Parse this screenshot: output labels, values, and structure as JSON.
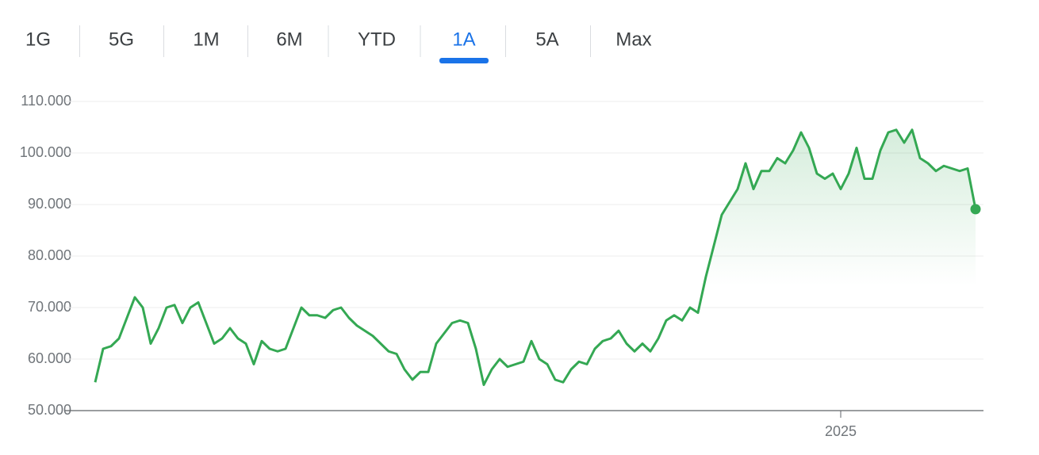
{
  "tabs": [
    "1G",
    "5G",
    "1M",
    "6M",
    "YTD",
    "1A",
    "5A",
    "Max"
  ],
  "active_tab": 5,
  "chart_data": {
    "type": "line",
    "color": "#34a853",
    "grid": true,
    "categories": [
      null,
      null,
      null,
      null,
      null,
      null,
      null,
      null,
      null,
      null,
      null,
      null,
      null,
      null,
      null,
      null,
      null,
      null,
      null,
      null,
      null,
      null,
      null,
      null,
      null,
      null,
      null,
      null,
      null,
      null,
      null,
      null,
      null,
      null,
      null,
      null,
      null,
      null,
      null,
      null,
      null,
      null,
      null,
      null,
      null,
      null,
      null,
      null,
      null,
      null,
      null,
      null,
      null,
      null,
      null,
      null,
      null,
      null,
      null,
      null,
      null,
      null,
      null,
      null,
      null,
      null,
      null,
      null,
      null,
      null,
      null,
      null,
      null,
      null,
      null,
      null,
      null,
      null,
      null,
      null,
      null,
      null,
      null,
      null,
      null,
      null,
      null,
      null,
      null,
      null,
      null,
      null,
      null,
      null,
      "2025",
      null,
      null,
      null,
      null,
      null,
      null,
      null,
      null,
      null,
      null,
      null,
      null,
      null,
      null,
      null,
      null,
      null
    ],
    "values": [
      55500,
      62000,
      62500,
      64000,
      68000,
      72000,
      70000,
      63000,
      66000,
      70000,
      70500,
      67000,
      70000,
      71000,
      67000,
      63000,
      64000,
      66000,
      64000,
      63000,
      59000,
      63500,
      62000,
      61500,
      62000,
      66000,
      70000,
      68500,
      68500,
      68000,
      69500,
      70000,
      68000,
      66500,
      65500,
      64500,
      63000,
      61500,
      61000,
      58000,
      56000,
      57500,
      57500,
      63000,
      65000,
      67000,
      67500,
      67000,
      62000,
      55000,
      58000,
      60000,
      58500,
      59000,
      59500,
      63500,
      60000,
      59000,
      56000,
      55500,
      58000,
      59500,
      59000,
      62000,
      63500,
      64000,
      65500,
      63000,
      61500,
      63000,
      61500,
      64000,
      67500,
      68500,
      67500,
      70000,
      69000,
      76000,
      82000,
      88000,
      90500,
      93000,
      98000,
      93000,
      96500,
      96500,
      99000,
      98000,
      100500,
      104000,
      101000,
      96000,
      95000,
      96000,
      93000,
      96000,
      101000,
      95000,
      95000,
      100500,
      104000,
      104500,
      102000,
      104500,
      99000,
      98000,
      96500,
      97500,
      97000,
      96500,
      97000,
      89100
    ],
    "ylim": [
      50000,
      110000
    ],
    "yticks": [
      {
        "value": 50000,
        "label": "50.000"
      },
      {
        "value": 60000,
        "label": "60.000"
      },
      {
        "value": 70000,
        "label": "70.000"
      },
      {
        "value": 80000,
        "label": "80.000"
      },
      {
        "value": 90000,
        "label": "90.000"
      },
      {
        "value": 100000,
        "label": "100.000"
      },
      {
        "value": 110000,
        "label": "110.000"
      }
    ]
  }
}
